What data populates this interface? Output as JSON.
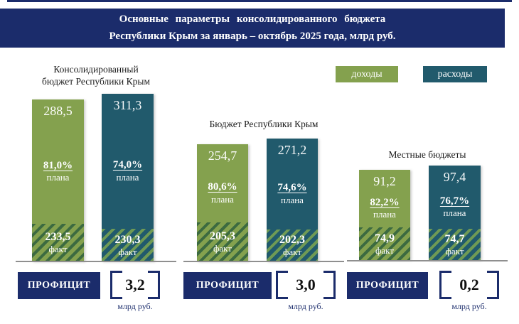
{
  "banner": {
    "line1": "Основные  параметры  консолидированного  бюджета",
    "line2": "Республики Крым за январь – октябрь 2025 года, млрд руб."
  },
  "legend": {
    "income": "доходы",
    "expense": "расходы"
  },
  "colors": {
    "navy": "#1b2c6b",
    "income_green": "#84a14e",
    "expense_teal": "#215a6c",
    "hatch_dark_green": "#3c6a40",
    "hatch_light_green": "#6f9a55",
    "baseline_gray": "#8f8f8f"
  },
  "groups": [
    {
      "title": "Консолидированный бюджет Республики Крым",
      "title_lines": [
        "Консолидированный",
        "бюджет Республики Крым"
      ],
      "income": {
        "total": "288,5",
        "percent": "81,0%",
        "percent_caption": "плана",
        "fact": "233,5",
        "fact_caption": "факт"
      },
      "expense": {
        "total": "311,3",
        "percent": "74,0%",
        "percent_caption": "плана",
        "fact": "230,3",
        "fact_caption": "факт"
      },
      "balance": {
        "label": "ПРОФИЦИТ",
        "value": "3,2",
        "unit": "млрд руб."
      }
    },
    {
      "title": "Бюджет Республики Крым",
      "title_lines": [
        "Бюджет Республики Крым"
      ],
      "income": {
        "total": "254,7",
        "percent": "80,6%",
        "percent_caption": "плана",
        "fact": "205,3",
        "fact_caption": "факт"
      },
      "expense": {
        "total": "271,2",
        "percent": "74,6%",
        "percent_caption": "плана",
        "fact": "202,3",
        "fact_caption": "факт"
      },
      "balance": {
        "label": "ПРОФИЦИТ",
        "value": "3,0",
        "unit": "млрд руб."
      }
    },
    {
      "title": "Местные бюджеты",
      "title_lines": [
        "Местные бюджеты"
      ],
      "income": {
        "total": "91,2",
        "percent": "82,2%",
        "percent_caption": "плана",
        "fact": "74,9",
        "fact_caption": "факт"
      },
      "expense": {
        "total": "97,4",
        "percent": "76,7%",
        "percent_caption": "плана",
        "fact": "74,7",
        "fact_caption": "факт"
      },
      "balance": {
        "label": "ПРОФИЦИТ",
        "value": "0,2",
        "unit": "млрд руб."
      }
    }
  ],
  "chart_data": {
    "type": "bar",
    "title": "Основные параметры консолидированного бюджета Республики Крым за январь – октябрь 2025 года, млрд руб.",
    "categories": [
      "Консолидированный бюджет Республики Крым",
      "Бюджет Республики Крым",
      "Местные бюджеты"
    ],
    "series": [
      {
        "name": "доходы",
        "plan_values": [
          288.5,
          254.7,
          91.2
        ],
        "fact_values": [
          233.5,
          205.3,
          74.9
        ],
        "percent_of_plan": [
          81.0,
          80.6,
          82.2
        ]
      },
      {
        "name": "расходы",
        "plan_values": [
          311.3,
          271.2,
          97.4
        ],
        "fact_values": [
          230.3,
          202.3,
          74.7
        ],
        "percent_of_plan": [
          74.0,
          74.6,
          76.7
        ]
      }
    ],
    "balance": {
      "label": "ПРОФИЦИТ",
      "values": [
        3.2,
        3.0,
        0.2
      ],
      "unit": "млрд руб."
    },
    "legend_position": "top-right",
    "grid": false,
    "units": "млрд руб."
  }
}
